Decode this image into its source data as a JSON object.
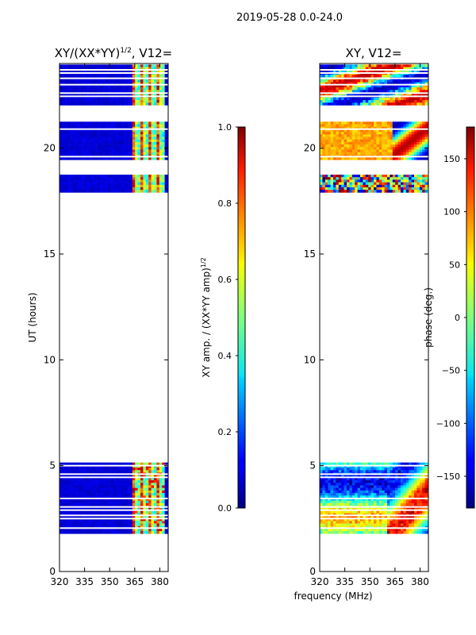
{
  "figure": {
    "suptitle": "2019-05-28 0.0-24.0",
    "shared_xlabel": "frequency (MHz)"
  },
  "chart_data": [
    {
      "type": "heatmap",
      "id": "amp",
      "title_main": "XY/(XX*YY)",
      "title_sup": "1/2",
      "title_tail": ", V12=",
      "ylabel": "UT (hours)",
      "xlim": [
        320,
        385
      ],
      "ylim": [
        0,
        24
      ],
      "xticks": [
        320,
        335,
        350,
        365,
        380
      ],
      "yticks": [
        0,
        5,
        10,
        15,
        20
      ],
      "colorbar": {
        "label": "XY amp. / (XX*YY amp)",
        "label_sup": "1/2",
        "range": [
          0.0,
          1.0
        ],
        "ticks": [
          "0.0",
          "0.2",
          "0.4",
          "0.6",
          "0.8",
          "1.0"
        ],
        "tick_values": [
          0.0,
          0.2,
          0.4,
          0.6,
          0.8,
          1.0
        ]
      },
      "data_bands_hours": [
        [
          1.8,
          5.15
        ],
        [
          18.0,
          18.75
        ],
        [
          19.55,
          21.25
        ],
        [
          22.1,
          23.95
        ]
      ],
      "gap_lines_hours": [
        2.05,
        2.5,
        2.65,
        2.9,
        3.05,
        3.45,
        4.45,
        4.6,
        5.0,
        19.6,
        20.9,
        22.45,
        22.6,
        23.0,
        23.3,
        23.55,
        23.7
      ],
      "feature_band_mhz": [
        362,
        382
      ]
    },
    {
      "type": "heatmap",
      "id": "phase",
      "title_main": "XY, V12=",
      "xlim": [
        320,
        385
      ],
      "ylim": [
        0,
        24
      ],
      "xticks": [
        320,
        335,
        350,
        365,
        380
      ],
      "yticks": [
        0,
        5,
        10,
        15,
        20
      ],
      "colorbar": {
        "label": "phase (deg.)",
        "range": [
          -180,
          180
        ],
        "ticks": [
          "150",
          "100",
          "50",
          "0",
          "−50",
          "−100",
          "−150"
        ],
        "tick_values": [
          150,
          100,
          50,
          0,
          -50,
          -100,
          -150
        ]
      },
      "data_bands_hours": [
        [
          1.8,
          5.15
        ],
        [
          18.0,
          18.75
        ],
        [
          19.55,
          21.25
        ],
        [
          22.1,
          23.95
        ]
      ],
      "gap_lines_hours": [
        2.05,
        2.5,
        2.65,
        2.9,
        3.05,
        3.45,
        4.45,
        4.6,
        5.0,
        19.6,
        20.9,
        22.45,
        22.6,
        23.0,
        23.3,
        23.55,
        23.7
      ]
    }
  ]
}
